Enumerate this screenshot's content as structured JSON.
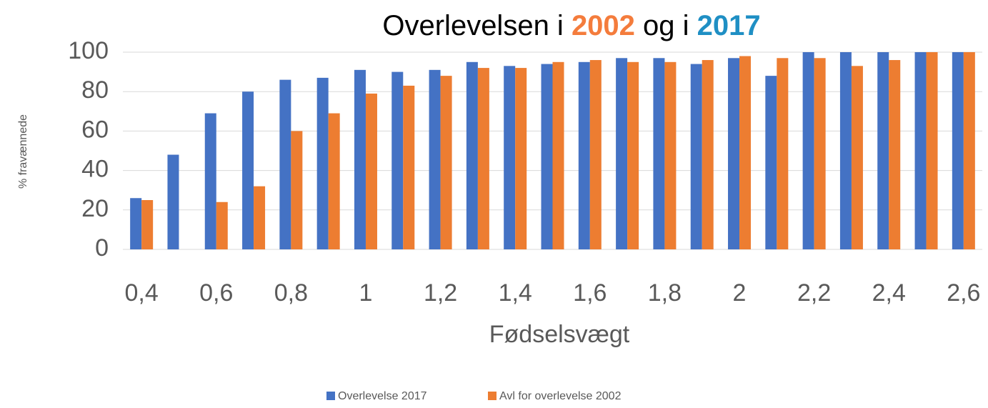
{
  "chart_data": {
    "type": "bar",
    "title": [
      "Overlevelsen i ",
      "2002",
      " og i ",
      "2017"
    ],
    "title_colors": [
      "#000000",
      "#f47c3c",
      "#000000",
      "#1f8fc4"
    ],
    "x_label": "Fødselsvægt",
    "y_label": "% fravænnede",
    "categories": [
      "0,4",
      null,
      "0,6",
      null,
      "0,8",
      null,
      "1",
      null,
      "1,2",
      null,
      "1,4",
      null,
      "1,6",
      null,
      "1,8",
      null,
      "2",
      null,
      "2,2",
      null,
      "2,4",
      null,
      "2,6"
    ],
    "series": [
      {
        "name": "Overlevelse 2017",
        "color": "#4472c4",
        "values": [
          26,
          48,
          69,
          80,
          86,
          87,
          91,
          90,
          91,
          95,
          93,
          94,
          95,
          97,
          97,
          94,
          97,
          88,
          100,
          100,
          100,
          100,
          100
        ]
      },
      {
        "name": "Avl for overlevelse 2002",
        "color": "#ed7d31",
        "values": [
          25,
          null,
          24,
          32,
          60,
          69,
          79,
          83,
          88,
          92,
          92,
          95,
          96,
          95,
          95,
          96,
          98,
          97,
          97,
          93,
          96,
          100,
          100
        ]
      }
    ],
    "ylim": [
      0,
      100
    ],
    "yticks": [
      0,
      20,
      40,
      60,
      80,
      100
    ],
    "grid": true,
    "legend": "bottom"
  }
}
